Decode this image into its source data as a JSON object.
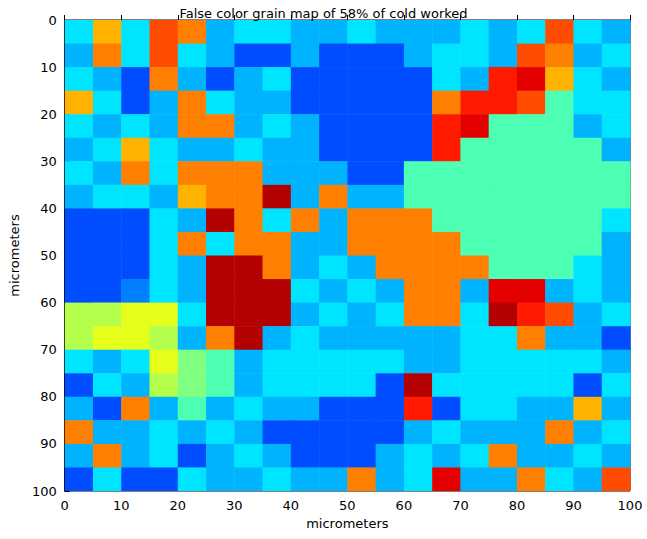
{
  "chart_data": {
    "type": "heatmap",
    "title": "False color grain map of 58% of cold worked",
    "x_label": "micrometers",
    "y_label": "micrometers",
    "xlim": [
      0,
      100
    ],
    "ylim": [
      0,
      100
    ],
    "xticks": [
      0,
      10,
      20,
      30,
      40,
      50,
      60,
      70,
      80,
      90,
      100
    ],
    "yticks": [
      0,
      10,
      20,
      30,
      40,
      50,
      60,
      70,
      80,
      90,
      100
    ],
    "x_edges": [
      0,
      5,
      10,
      15,
      20,
      25,
      30,
      35,
      40,
      45,
      50,
      55,
      60,
      65,
      70,
      75,
      80,
      85,
      90,
      95,
      100
    ],
    "y_edges": [
      0,
      5,
      10,
      15,
      20,
      25,
      30,
      35,
      40,
      45,
      50,
      55,
      60,
      65,
      70,
      75,
      80,
      85,
      90,
      95,
      100
    ],
    "zlim": [
      0,
      1
    ],
    "z": [
      [
        0.35,
        0.7,
        0.35,
        0.8,
        0.75,
        0.3,
        0.35,
        0.35,
        0.3,
        0.3,
        0.35,
        0.3,
        0.3,
        0.3,
        0.35,
        0.3,
        0.35,
        0.8,
        0.35,
        0.3
      ],
      [
        0.3,
        0.75,
        0.35,
        0.8,
        0.35,
        0.3,
        0.2,
        0.2,
        0.3,
        0.2,
        0.2,
        0.2,
        0.3,
        0.35,
        0.35,
        0.3,
        0.8,
        0.75,
        0.3,
        0.35
      ],
      [
        0.35,
        0.3,
        0.2,
        0.75,
        0.3,
        0.2,
        0.3,
        0.35,
        0.2,
        0.2,
        0.2,
        0.2,
        0.2,
        0.35,
        0.3,
        0.85,
        0.9,
        0.7,
        0.35,
        0.3
      ],
      [
        0.7,
        0.35,
        0.2,
        0.3,
        0.75,
        0.35,
        0.3,
        0.3,
        0.2,
        0.2,
        0.2,
        0.2,
        0.2,
        0.75,
        0.85,
        0.85,
        0.8,
        0.45,
        0.35,
        0.35
      ],
      [
        0.35,
        0.3,
        0.35,
        0.3,
        0.75,
        0.75,
        0.3,
        0.35,
        0.3,
        0.2,
        0.2,
        0.2,
        0.2,
        0.85,
        0.9,
        0.45,
        0.45,
        0.45,
        0.3,
        0.35
      ],
      [
        0.3,
        0.35,
        0.7,
        0.35,
        0.3,
        0.3,
        0.35,
        0.3,
        0.3,
        0.2,
        0.2,
        0.2,
        0.2,
        0.85,
        0.45,
        0.45,
        0.45,
        0.45,
        0.45,
        0.3
      ],
      [
        0.35,
        0.3,
        0.75,
        0.35,
        0.75,
        0.75,
        0.75,
        0.3,
        0.3,
        0.3,
        0.2,
        0.2,
        0.45,
        0.45,
        0.45,
        0.45,
        0.45,
        0.45,
        0.45,
        0.45
      ],
      [
        0.3,
        0.35,
        0.35,
        0.3,
        0.7,
        0.75,
        0.75,
        0.95,
        0.3,
        0.75,
        0.3,
        0.3,
        0.45,
        0.45,
        0.45,
        0.45,
        0.45,
        0.45,
        0.45,
        0.45
      ],
      [
        0.2,
        0.2,
        0.2,
        0.35,
        0.3,
        0.95,
        0.75,
        0.35,
        0.75,
        0.3,
        0.75,
        0.75,
        0.75,
        0.45,
        0.45,
        0.45,
        0.45,
        0.45,
        0.45,
        0.35
      ],
      [
        0.2,
        0.2,
        0.2,
        0.35,
        0.75,
        0.35,
        0.75,
        0.75,
        0.3,
        0.3,
        0.75,
        0.75,
        0.75,
        0.75,
        0.45,
        0.45,
        0.45,
        0.45,
        0.45,
        0.3
      ],
      [
        0.2,
        0.2,
        0.2,
        0.35,
        0.3,
        0.95,
        0.95,
        0.75,
        0.3,
        0.35,
        0.3,
        0.75,
        0.75,
        0.75,
        0.75,
        0.45,
        0.45,
        0.45,
        0.35,
        0.3
      ],
      [
        0.2,
        0.2,
        0.25,
        0.35,
        0.3,
        0.95,
        0.95,
        0.95,
        0.35,
        0.3,
        0.35,
        0.3,
        0.75,
        0.75,
        0.3,
        0.9,
        0.9,
        0.3,
        0.35,
        0.3
      ],
      [
        0.55,
        0.55,
        0.6,
        0.6,
        0.35,
        0.95,
        0.95,
        0.95,
        0.3,
        0.35,
        0.3,
        0.35,
        0.75,
        0.75,
        0.35,
        0.95,
        0.85,
        0.8,
        0.3,
        0.35
      ],
      [
        0.55,
        0.6,
        0.6,
        0.55,
        0.3,
        0.75,
        0.95,
        0.3,
        0.35,
        0.3,
        0.3,
        0.3,
        0.3,
        0.3,
        0.35,
        0.35,
        0.75,
        0.3,
        0.3,
        0.2
      ],
      [
        0.35,
        0.3,
        0.35,
        0.6,
        0.5,
        0.45,
        0.3,
        0.35,
        0.35,
        0.35,
        0.35,
        0.35,
        0.3,
        0.3,
        0.35,
        0.35,
        0.35,
        0.35,
        0.35,
        0.3
      ],
      [
        0.2,
        0.35,
        0.3,
        0.55,
        0.5,
        0.45,
        0.3,
        0.35,
        0.35,
        0.35,
        0.35,
        0.2,
        0.95,
        0.35,
        0.35,
        0.35,
        0.35,
        0.35,
        0.2,
        0.35
      ],
      [
        0.3,
        0.2,
        0.75,
        0.3,
        0.45,
        0.3,
        0.35,
        0.3,
        0.3,
        0.2,
        0.2,
        0.2,
        0.85,
        0.2,
        0.35,
        0.35,
        0.3,
        0.3,
        0.7,
        0.3
      ],
      [
        0.75,
        0.3,
        0.3,
        0.35,
        0.3,
        0.35,
        0.3,
        0.2,
        0.2,
        0.2,
        0.2,
        0.2,
        0.3,
        0.35,
        0.3,
        0.3,
        0.3,
        0.75,
        0.3,
        0.35
      ],
      [
        0.3,
        0.75,
        0.3,
        0.35,
        0.2,
        0.3,
        0.35,
        0.3,
        0.2,
        0.2,
        0.2,
        0.3,
        0.35,
        0.3,
        0.35,
        0.75,
        0.3,
        0.3,
        0.35,
        0.3
      ],
      [
        0.2,
        0.35,
        0.2,
        0.2,
        0.35,
        0.3,
        0.3,
        0.35,
        0.3,
        0.3,
        0.75,
        0.3,
        0.35,
        0.9,
        0.3,
        0.3,
        0.75,
        0.35,
        0.3,
        0.8
      ]
    ]
  }
}
